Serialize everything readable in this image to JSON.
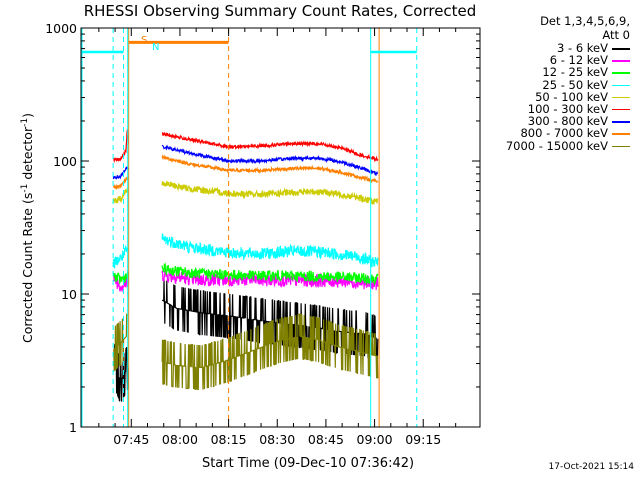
{
  "chart_data": {
    "type": "line",
    "title": "RHESSI Observing Summary Count Rates, Corrected",
    "xlabel": "Start Time (09-Dec-10 07:36:42)",
    "ylabel": "Corrected Count Rate (s",
    "ylabel_sup": "-1",
    "ylabel_mid": " detector",
    "ylabel_end": ")",
    "yscale": "log",
    "ylim": [
      1,
      1000
    ],
    "xlim_minutes": [
      -15.5,
      107.5
    ],
    "x_ticks": [
      {
        "label": "07:45",
        "minute": 0
      },
      {
        "label": "08:00",
        "minute": 15
      },
      {
        "label": "08:15",
        "minute": 30
      },
      {
        "label": "08:30",
        "minute": 45
      },
      {
        "label": "08:45",
        "minute": 60
      },
      {
        "label": "09:00",
        "minute": 75
      },
      {
        "label": "09:15",
        "minute": 90
      }
    ],
    "y_ticks": [
      {
        "label": "1",
        "value": 1
      },
      {
        "label": "10",
        "value": 10
      },
      {
        "label": "100",
        "value": 100
      },
      {
        "label": "1000",
        "value": 1000
      }
    ],
    "legend_header": [
      "Det 1,3,4,5,6,9,",
      "Att 0"
    ],
    "legend_position": "top-right",
    "series": [
      {
        "name": "3 - 6 keV",
        "color": "#000000",
        "points": [
          [
            -5.5,
            3.0
          ],
          [
            -3.3,
            2.2
          ],
          [
            9.5,
            9.0
          ],
          [
            14,
            7.8
          ],
          [
            22,
            7.2
          ],
          [
            31,
            6.8
          ],
          [
            42,
            6.2
          ],
          [
            55,
            5.7
          ],
          [
            65,
            5.2
          ],
          [
            72,
            5.0
          ],
          [
            76,
            4.6
          ]
        ]
      },
      {
        "name": "6 - 12 keV",
        "color": "#ff00ff",
        "points": [
          [
            -5.5,
            13.2
          ],
          [
            -3.3,
            11.5
          ],
          [
            -1.5,
            12.0
          ],
          [
            9.5,
            14.0
          ],
          [
            20,
            12.8
          ],
          [
            35,
            12.8
          ],
          [
            50,
            12.7
          ],
          [
            65,
            12.5
          ],
          [
            76,
            12.0
          ]
        ]
      },
      {
        "name": "12 - 25 keV",
        "color": "#00ff00",
        "points": [
          [
            -5.5,
            13.8
          ],
          [
            -3.3,
            12.8
          ],
          [
            -1.5,
            13.5
          ],
          [
            9.5,
            15.3
          ],
          [
            20,
            14.3
          ],
          [
            35,
            13.8
          ],
          [
            50,
            13.7
          ],
          [
            65,
            13.4
          ],
          [
            76,
            13.0
          ]
        ]
      },
      {
        "name": "25 - 50 keV",
        "color": "#00ffff",
        "points": [
          [
            -5.5,
            17.0
          ],
          [
            -3.3,
            18.5
          ],
          [
            -1.5,
            21.0
          ],
          [
            9.5,
            26.0
          ],
          [
            18,
            22.5
          ],
          [
            30,
            20.5
          ],
          [
            40,
            20.0
          ],
          [
            50,
            21.0
          ],
          [
            60,
            20.5
          ],
          [
            70,
            19.0
          ],
          [
            76,
            17.0
          ]
        ]
      },
      {
        "name": "50 - 100 keV",
        "color": "#cccc00",
        "points": [
          [
            -5.5,
            50
          ],
          [
            -3.3,
            52
          ],
          [
            -1.5,
            60
          ],
          [
            9.5,
            68
          ],
          [
            18,
            62
          ],
          [
            30,
            57
          ],
          [
            40,
            56
          ],
          [
            50,
            58
          ],
          [
            58,
            59
          ],
          [
            65,
            56
          ],
          [
            70,
            53
          ],
          [
            76,
            49
          ]
        ]
      },
      {
        "name": "100 - 300 keV",
        "color": "#ff0000",
        "points": [
          [
            -5.5,
            101
          ],
          [
            -3.3,
            104
          ],
          [
            -1.6,
            120
          ],
          [
            -1.2,
            180
          ],
          [
            -0.9,
            130
          ],
          [
            9.5,
            160
          ],
          [
            18,
            145
          ],
          [
            30,
            128
          ],
          [
            40,
            130
          ],
          [
            50,
            135
          ],
          [
            58,
            135
          ],
          [
            65,
            125
          ],
          [
            70,
            112
          ],
          [
            76,
            103
          ]
        ]
      },
      {
        "name": "300 - 800 keV",
        "color": "#0000ff",
        "points": [
          [
            -5.5,
            75
          ],
          [
            -3.3,
            77
          ],
          [
            -1.5,
            88
          ],
          [
            9.5,
            128
          ],
          [
            18,
            115
          ],
          [
            30,
            100
          ],
          [
            40,
            100
          ],
          [
            50,
            105
          ],
          [
            58,
            105
          ],
          [
            65,
            98
          ],
          [
            70,
            90
          ],
          [
            76,
            80
          ]
        ]
      },
      {
        "name": "800 - 7000 keV",
        "color": "#ff8000",
        "points": [
          [
            -5.5,
            63
          ],
          [
            -3.3,
            65
          ],
          [
            -1.5,
            74
          ],
          [
            9.5,
            107
          ],
          [
            18,
            95
          ],
          [
            30,
            85
          ],
          [
            40,
            85
          ],
          [
            50,
            88
          ],
          [
            58,
            88
          ],
          [
            65,
            82
          ],
          [
            70,
            76
          ],
          [
            76,
            70
          ]
        ]
      },
      {
        "name": "7000 - 15000 keV",
        "color": "#808000",
        "points": [
          [
            -5.5,
            3.8
          ],
          [
            -3.3,
            4.3
          ],
          [
            -1.5,
            4.8
          ],
          [
            9.5,
            3.1
          ],
          [
            14,
            2.9
          ],
          [
            22,
            2.8
          ],
          [
            30,
            3.2
          ],
          [
            38,
            3.8
          ],
          [
            45,
            4.4
          ],
          [
            52,
            4.8
          ],
          [
            58,
            4.5
          ],
          [
            64,
            4.0
          ],
          [
            70,
            3.7
          ],
          [
            76,
            3.4
          ]
        ]
      }
    ],
    "annotations": [
      {
        "label": "S",
        "color": "#ff8000"
      },
      {
        "label": "N",
        "color": "#00ffff"
      }
    ],
    "timestamp": "17-Oct-2021 15:14"
  }
}
